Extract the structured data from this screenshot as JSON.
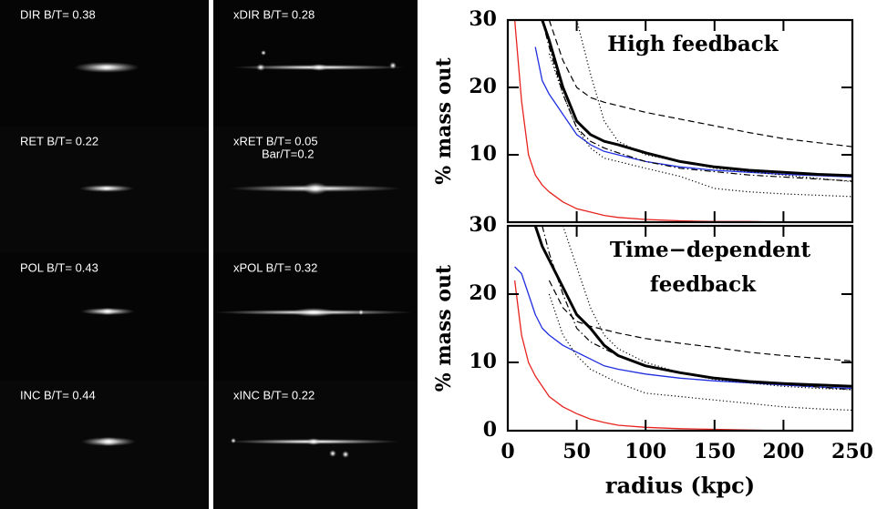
{
  "panels": [
    {
      "label": "DIR B/T= 0.38"
    },
    {
      "label": "xDIR B/T= 0.28"
    },
    {
      "label": "RET B/T= 0.22"
    },
    {
      "label": "xRET B/T= 0.05",
      "note": "Bar/T=0.2"
    },
    {
      "label": "POL B/T= 0.43"
    },
    {
      "label": "xPOL B/T= 0.32"
    },
    {
      "label": "INC B/T= 0.44"
    },
    {
      "label": "xINC B/T= 0.22"
    }
  ],
  "chart_data": [
    {
      "type": "line",
      "annotation": [
        "High feedback"
      ],
      "ylabel": "% mass out",
      "x": [
        5,
        10,
        15,
        20,
        25,
        30,
        40,
        50,
        60,
        70,
        80,
        100,
        125,
        150,
        175,
        200,
        225,
        250
      ],
      "xlim": [
        0,
        250
      ],
      "ylim": [
        0,
        30
      ],
      "yticks": [
        10,
        20,
        30
      ],
      "series": [
        {
          "color": "#e8231f",
          "dash": "solid",
          "width": 1.3,
          "values": [
            30,
            18,
            10,
            7,
            5.5,
            4.5,
            3,
            2,
            1.5,
            1,
            0.7,
            0.4,
            0.2,
            0.1,
            0.1,
            0,
            0,
            0
          ]
        },
        {
          "color": "#1f2fe0",
          "dash": "solid",
          "width": 1.3,
          "values": [
            null,
            null,
            null,
            26,
            21,
            19,
            16,
            13,
            11.5,
            10.5,
            10,
            9,
            8.2,
            7.7,
            7.4,
            7.1,
            6.9,
            6.7
          ]
        },
        {
          "color": "#000000",
          "dash": "solid",
          "width": 3,
          "values": [
            null,
            null,
            null,
            null,
            30,
            27,
            20,
            15,
            13,
            12,
            11.5,
            10.3,
            9,
            8.2,
            7.7,
            7.4,
            7.1,
            6.9
          ]
        },
        {
          "color": "#000000",
          "dash": "dashed",
          "width": 1.2,
          "values": [
            null,
            null,
            null,
            null,
            null,
            30,
            24,
            20,
            18.5,
            17.8,
            17.3,
            16.3,
            15.3,
            14.3,
            13.3,
            12.4,
            11.8,
            11.2
          ]
        },
        {
          "color": "#000000",
          "dash": "dashdot",
          "width": 1.2,
          "values": [
            null,
            null,
            null,
            null,
            30,
            26,
            19,
            14,
            12,
            11,
            10.3,
            9,
            8,
            7.5,
            7,
            6.7,
            6.4,
            6.1
          ]
        },
        {
          "color": "#000000",
          "dash": "dotted",
          "width": 1.2,
          "values": [
            null,
            null,
            null,
            null,
            null,
            null,
            null,
            30,
            22,
            15,
            12,
            10,
            9,
            8,
            7.5,
            7,
            6.5,
            6
          ]
        },
        {
          "color": "#000000",
          "dash": "dotted",
          "width": 1.2,
          "values": [
            null,
            null,
            null,
            null,
            null,
            25,
            19,
            14,
            11,
            9.5,
            9,
            8,
            6.8,
            5,
            4.5,
            4.2,
            4,
            3.8
          ]
        }
      ]
    },
    {
      "type": "line",
      "annotation": [
        "Time−dependent",
        "feedback"
      ],
      "ylabel": "% mass out",
      "xlabel": "radius (kpc)",
      "x": [
        5,
        10,
        15,
        20,
        25,
        30,
        40,
        50,
        60,
        70,
        80,
        100,
        125,
        150,
        175,
        200,
        225,
        250
      ],
      "xlim": [
        0,
        250
      ],
      "ylim": [
        0,
        30
      ],
      "xticks": [
        0,
        50,
        100,
        150,
        200,
        250
      ],
      "yticks": [
        0,
        10,
        20,
        30
      ],
      "series": [
        {
          "color": "#e8231f",
          "dash": "solid",
          "width": 1.3,
          "values": [
            22,
            14,
            10,
            8,
            6.5,
            5,
            3.5,
            2.5,
            1.7,
            1.2,
            0.8,
            0.5,
            0.3,
            0.2,
            0.1,
            0,
            0,
            0
          ]
        },
        {
          "color": "#1f2fe0",
          "dash": "solid",
          "width": 1.3,
          "values": [
            24,
            23,
            20,
            17,
            15,
            14,
            12.5,
            11.5,
            10.5,
            9.5,
            9,
            8.3,
            7.7,
            7.3,
            7,
            6.7,
            6.4,
            6.2
          ]
        },
        {
          "color": "#000000",
          "dash": "solid",
          "width": 3,
          "values": [
            null,
            null,
            null,
            30,
            27,
            25,
            21,
            17,
            15,
            12.5,
            11,
            9.5,
            8.5,
            7.7,
            7.2,
            6.9,
            6.7,
            6.5
          ]
        },
        {
          "color": "#000000",
          "dash": "dashed",
          "width": 1.2,
          "values": [
            null,
            null,
            null,
            25,
            null,
            22,
            18,
            16,
            15.3,
            14.8,
            14.3,
            13.5,
            12.8,
            12.2,
            11.5,
            11,
            10.6,
            10.2
          ]
        },
        {
          "color": "#000000",
          "dash": "dashdot",
          "width": 1.2,
          "values": [
            null,
            null,
            null,
            null,
            30,
            26,
            20,
            15,
            13,
            12,
            11,
            9.5,
            8.5,
            7.7,
            7.2,
            6.8,
            6.4,
            6
          ]
        },
        {
          "color": "#000000",
          "dash": "dotted",
          "width": 1.2,
          "values": [
            null,
            null,
            null,
            null,
            null,
            null,
            30,
            24,
            18,
            14,
            12,
            10,
            8.5,
            7.5,
            7,
            6.5,
            6.2,
            6
          ]
        },
        {
          "color": "#000000",
          "dash": "dotted",
          "width": 1.2,
          "values": [
            null,
            null,
            null,
            null,
            null,
            20,
            14,
            11,
            9,
            8,
            7,
            5.5,
            5,
            4.5,
            4,
            3.5,
            3.2,
            3
          ]
        }
      ]
    }
  ]
}
